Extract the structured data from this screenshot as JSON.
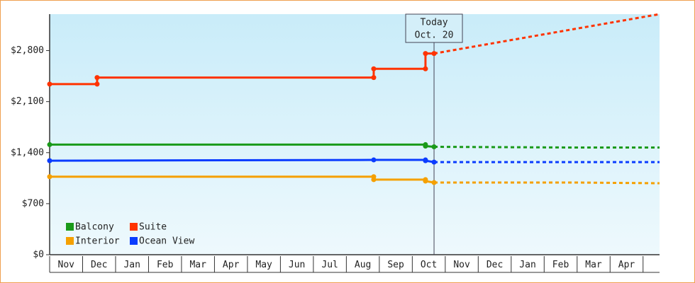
{
  "chart_data": {
    "type": "step-line",
    "xlim": [
      0,
      18.5
    ],
    "xticks": [
      {
        "value": 0.5,
        "label": "Nov"
      },
      {
        "value": 1.5,
        "label": "Dec"
      },
      {
        "value": 2.5,
        "label": "Jan"
      },
      {
        "value": 3.5,
        "label": "Feb"
      },
      {
        "value": 4.5,
        "label": "Mar"
      },
      {
        "value": 5.5,
        "label": "Apr"
      },
      {
        "value": 6.5,
        "label": "May"
      },
      {
        "value": 7.5,
        "label": "Jun"
      },
      {
        "value": 8.5,
        "label": "Jul"
      },
      {
        "value": 9.5,
        "label": "Aug"
      },
      {
        "value": 10.5,
        "label": "Sep"
      },
      {
        "value": 11.5,
        "label": "Oct"
      },
      {
        "value": 12.5,
        "label": "Nov"
      },
      {
        "value": 13.5,
        "label": "Dec"
      },
      {
        "value": 14.5,
        "label": "Jan"
      },
      {
        "value": 15.5,
        "label": "Feb"
      },
      {
        "value": 16.5,
        "label": "Mar"
      },
      {
        "value": 17.5,
        "label": "Apr"
      }
    ],
    "ylim": [
      0,
      3300
    ],
    "yticks": [
      {
        "value": 0,
        "label": "$0"
      },
      {
        "value": 700,
        "label": "$700"
      },
      {
        "value": 1400,
        "label": "$1,400"
      },
      {
        "value": 2100,
        "label": "$2,100"
      },
      {
        "value": 2800,
        "label": "$2,800"
      }
    ],
    "today": {
      "x": 11.66,
      "label": "Today",
      "date": "Oct. 20"
    },
    "series": [
      {
        "name": "Balcony",
        "color": "#1a9a1a",
        "x": [
          0,
          11.4,
          11.4,
          11.66
        ],
        "values": [
          1510,
          1510,
          1490,
          1480
        ],
        "forecast_x": [
          11.66,
          16,
          18.5
        ],
        "forecast_values": [
          1480,
          1470,
          1470
        ]
      },
      {
        "name": "Suite",
        "color": "#ff3300",
        "x": [
          0,
          1.44,
          1.44,
          9.83,
          9.83,
          11.4,
          11.4,
          11.66
        ],
        "values": [
          2340,
          2340,
          2430,
          2430,
          2550,
          2550,
          2760,
          2760
        ],
        "forecast_x": [
          11.66,
          18.5
        ],
        "forecast_values": [
          2760,
          3300
        ]
      },
      {
        "name": "Interior",
        "color": "#f5a000",
        "x": [
          0,
          9.83,
          9.83,
          11.4,
          11.4,
          11.66
        ],
        "values": [
          1070,
          1070,
          1030,
          1030,
          1010,
          990
        ],
        "forecast_x": [
          11.66,
          16,
          18.5
        ],
        "forecast_values": [
          990,
          990,
          980
        ]
      },
      {
        "name": "Ocean View",
        "color": "#0a3cff",
        "x": [
          0,
          9.83,
          11.4,
          11.4,
          11.66
        ],
        "values": [
          1290,
          1300,
          1300,
          1290,
          1270
        ],
        "forecast_x": [
          11.66,
          18.5
        ],
        "forecast_values": [
          1270,
          1270
        ]
      }
    ]
  }
}
